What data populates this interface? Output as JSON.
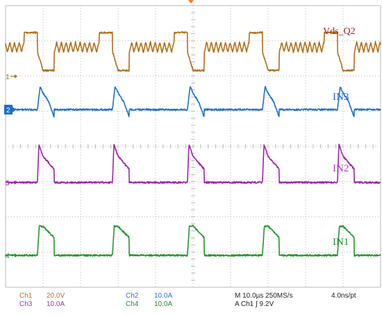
{
  "colors": {
    "ch1": "#b06e16",
    "ch2": "#1a6fcf",
    "ch3": "#a020b0",
    "ch4": "#22962a",
    "grid": "#b8b8b8",
    "label_ch1": "#a0201c",
    "label_ch2": "#2060d0",
    "label_ch3": "#b040c0",
    "label_ch4": "#208c30",
    "status_ch1": "#c07020",
    "status_ch2": "#2a6fd6",
    "status_ch3": "#a030b0",
    "status_ch4": "#208c30",
    "status_text": "#222222"
  },
  "chart_data": {
    "type": "line",
    "title": "",
    "xlabel": "",
    "ylabel": "",
    "grid": true,
    "x_unit": "µs",
    "time_per_div": 10.0,
    "divisions": {
      "x": 10,
      "y": 8
    },
    "period": 20.0,
    "x_range": [
      -48.0,
      52.0
    ],
    "series": [
      {
        "name": "Vds_Q2",
        "channel": "1",
        "scale": "20.0V",
        "ground_marker": "1",
        "waveform": "drain-source voltage",
        "points": [
          [
            0,
            30
          ],
          [
            0.5,
            30
          ],
          [
            0.5,
            17
          ],
          [
            2.0,
            4
          ],
          [
            5.0,
            4
          ],
          [
            5.0,
            20
          ],
          [
            5.0,
            20
          ],
          [
            17.0,
            20
          ],
          [
            17.0,
            30
          ],
          [
            20.0,
            30
          ]
        ],
        "ringing_amplitude": 3.5,
        "ringing_range": [
          5.0,
          17.0
        ]
      },
      {
        "name": "IN3",
        "channel": "2",
        "scale": "10.0A",
        "ground_marker": "2",
        "waveform": "current",
        "points": [
          [
            0,
            0
          ],
          [
            0.5,
            0
          ],
          [
            1.2,
            9
          ],
          [
            2.0,
            6.5
          ],
          [
            3.5,
            3
          ],
          [
            5.0,
            -3
          ],
          [
            5.0,
            0
          ],
          [
            20.0,
            0
          ]
        ]
      },
      {
        "name": "IN2",
        "channel": "3",
        "scale": "10.0A",
        "ground_marker": "3",
        "waveform": "current",
        "points": [
          [
            0,
            0
          ],
          [
            0.5,
            0
          ],
          [
            0.9,
            13
          ],
          [
            2.0,
            9
          ],
          [
            4.0,
            6
          ],
          [
            5.0,
            4.5
          ],
          [
            5.0,
            0
          ],
          [
            20.0,
            0
          ]
        ]
      },
      {
        "name": "IN1",
        "channel": "4",
        "scale": "10.0A",
        "ground_marker": "4",
        "waveform": "current",
        "points": [
          [
            0,
            0
          ],
          [
            0.5,
            0
          ],
          [
            1.0,
            10
          ],
          [
            2.0,
            10
          ],
          [
            3.5,
            8
          ],
          [
            5.0,
            6
          ],
          [
            5.0,
            0
          ],
          [
            20.0,
            0
          ]
        ]
      }
    ],
    "status": {
      "ch1": {
        "label": "Ch1",
        "value": "20.0V"
      },
      "ch2": {
        "label": "Ch2",
        "value": "10.0A"
      },
      "ch3": {
        "label": "Ch3",
        "value": "10.0A"
      },
      "ch4": {
        "label": "Ch4",
        "value": "10.0A"
      },
      "timebase": "M 10.0µs 250MS/s",
      "resolution": "4.0ns/pt",
      "trigger": "A  Ch1  ∫  9.2V"
    }
  }
}
